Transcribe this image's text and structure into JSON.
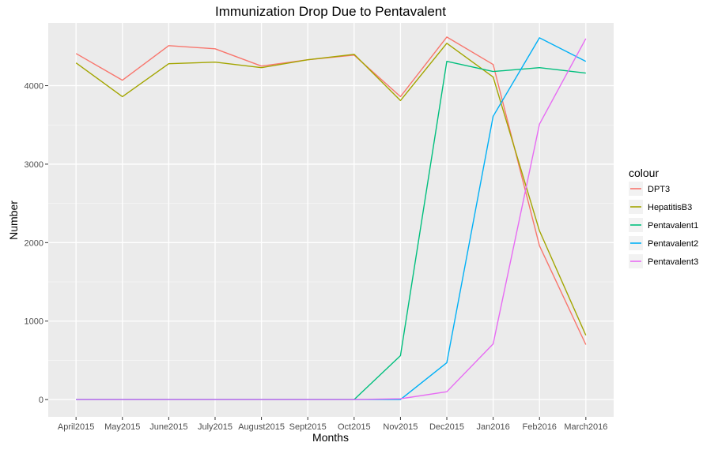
{
  "chart_data": {
    "type": "line",
    "title": "Immunization Drop Due to Pentavalent",
    "xlabel": "Months",
    "ylabel": "Number",
    "categories": [
      "April2015",
      "May2015",
      "June2015",
      "July2015",
      "August2015",
      "Sept2015",
      "Oct2015",
      "Nov2015",
      "Dec2015",
      "Jan2016",
      "Feb2016",
      "March2016"
    ],
    "ylim": [
      -220,
      4800
    ],
    "yticks": [
      0,
      1000,
      2000,
      3000,
      4000
    ],
    "ytick_labels": [
      "0",
      "1000",
      "2000",
      "3000",
      "4000"
    ],
    "grid": true,
    "legend": {
      "title": "colour",
      "placement": "right"
    },
    "series": [
      {
        "name": "DPT3",
        "color": "#F8766D",
        "values": [
          4410,
          4070,
          4510,
          4470,
          4250,
          4330,
          4390,
          3860,
          4620,
          4270,
          1960,
          700
        ]
      },
      {
        "name": "HepatitisB3",
        "color": "#A3A500",
        "values": [
          4290,
          3860,
          4280,
          4300,
          4230,
          4330,
          4400,
          3810,
          4540,
          4110,
          2150,
          820
        ]
      },
      {
        "name": "Pentavalent1",
        "color": "#00BF7D",
        "values": [
          0,
          0,
          0,
          0,
          0,
          0,
          0,
          560,
          4310,
          4180,
          4230,
          4160
        ]
      },
      {
        "name": "Pentavalent2",
        "color": "#00B0F6",
        "values": [
          0,
          0,
          0,
          0,
          0,
          0,
          0,
          0,
          470,
          3610,
          4610,
          4310
        ]
      },
      {
        "name": "Pentavalent3",
        "color": "#E76BF3",
        "values": [
          0,
          0,
          0,
          0,
          0,
          0,
          0,
          10,
          100,
          710,
          3510,
          4600
        ]
      }
    ]
  }
}
